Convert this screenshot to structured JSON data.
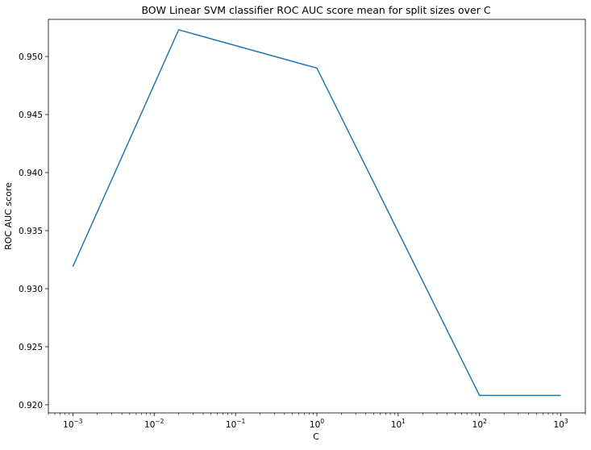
{
  "chart_data": {
    "type": "line",
    "title": "BOW Linear SVM classifier ROC AUC score mean for split sizes over C",
    "xlabel": "C",
    "ylabel": "ROC AUC score",
    "x_scale": "log",
    "xlim": [
      0.0005,
      2000
    ],
    "ylim": [
      0.9193,
      0.9532
    ],
    "grid": false,
    "legend": "none",
    "x_ticks": [
      {
        "value": 0.001,
        "base": "10",
        "exp": "−3"
      },
      {
        "value": 0.01,
        "base": "10",
        "exp": "−2"
      },
      {
        "value": 0.1,
        "base": "10",
        "exp": "−1"
      },
      {
        "value": 1,
        "base": "10",
        "exp": "0"
      },
      {
        "value": 10,
        "base": "10",
        "exp": "1"
      },
      {
        "value": 100,
        "base": "10",
        "exp": "2"
      },
      {
        "value": 1000,
        "base": "10",
        "exp": "3"
      }
    ],
    "y_ticks": [
      {
        "value": 0.92,
        "label": "0.920"
      },
      {
        "value": 0.925,
        "label": "0.925"
      },
      {
        "value": 0.93,
        "label": "0.930"
      },
      {
        "value": 0.935,
        "label": "0.935"
      },
      {
        "value": 0.94,
        "label": "0.940"
      },
      {
        "value": 0.945,
        "label": "0.945"
      },
      {
        "value": 0.95,
        "label": "0.950"
      }
    ],
    "series": [
      {
        "x": [
          0.001,
          0.02,
          1,
          100,
          1000
        ],
        "y": [
          0.9319,
          0.9523,
          0.949,
          0.9208,
          0.9208
        ],
        "color": "#1f77b4"
      }
    ]
  }
}
